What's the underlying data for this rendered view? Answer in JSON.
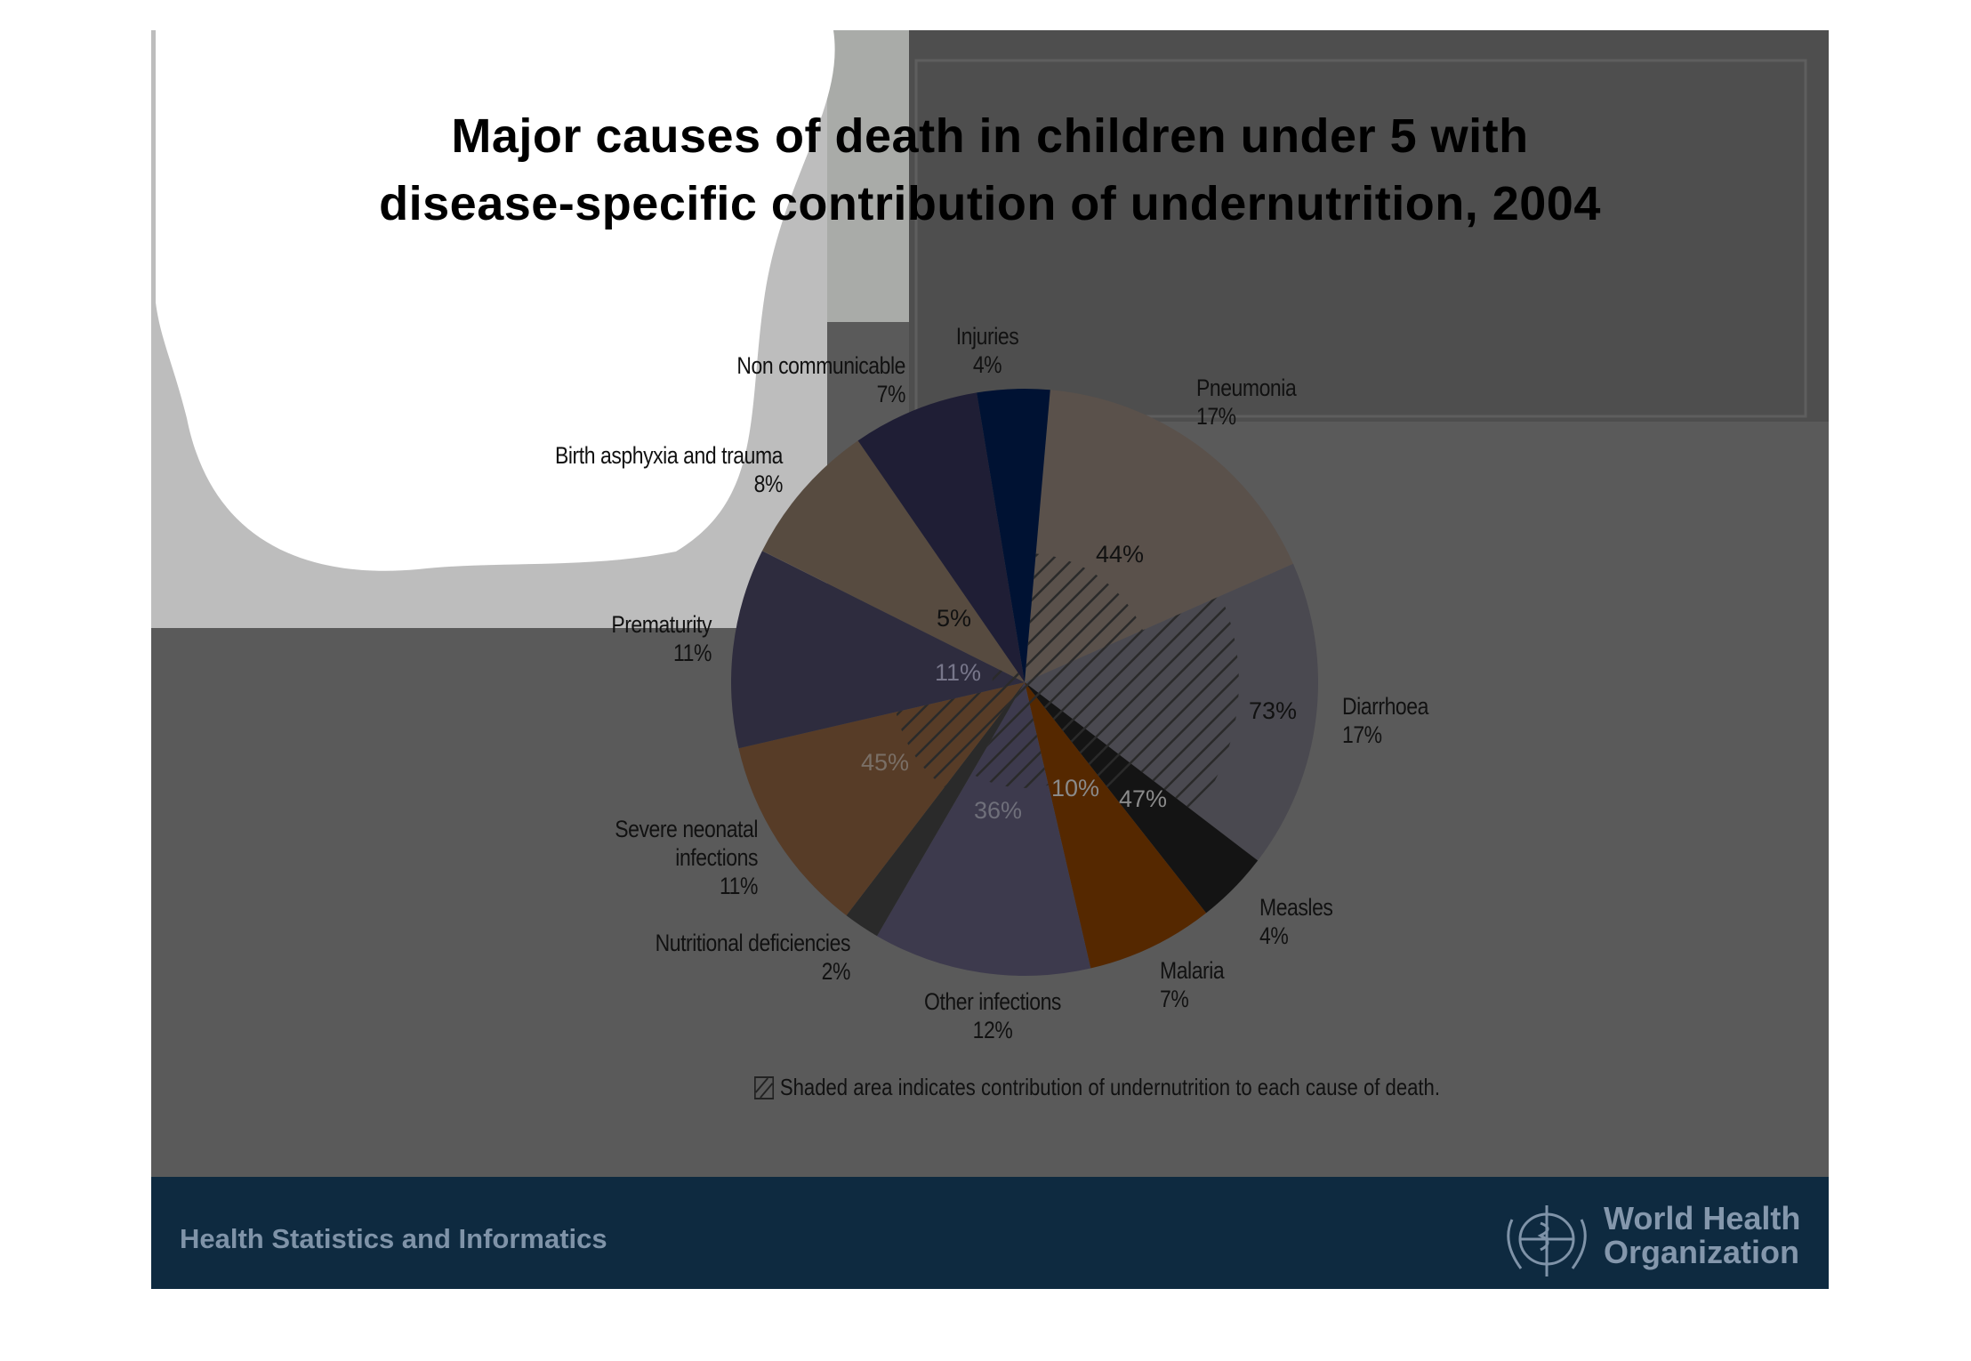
{
  "title_lines": [
    "Major causes of death in children under 5 with",
    "disease-specific contribution of undernutrition, 2004"
  ],
  "chart_data": {
    "type": "pie",
    "title": "Major causes of death in children under 5 with disease-specific contribution of undernutrition, 2004",
    "slices": [
      {
        "name": "Pneumonia",
        "value": 17,
        "value_label": "17%",
        "undernutrition_share": 44,
        "share_label": "44%",
        "color": "#5a514b"
      },
      {
        "name": "Diarrhoea",
        "value": 17,
        "value_label": "17%",
        "undernutrition_share": 73,
        "share_label": "73%",
        "color": "#4a4950"
      },
      {
        "name": "Measles",
        "value": 4,
        "value_label": "4%",
        "undernutrition_share": 47,
        "share_label": "47%",
        "color": "#141414"
      },
      {
        "name": "Malaria",
        "value": 7,
        "value_label": "7%",
        "undernutrition_share": 10,
        "share_label": "10%",
        "color": "#552800"
      },
      {
        "name": "Other infections",
        "value": 12,
        "value_label": "12%",
        "undernutrition_share": 36,
        "share_label": "36%",
        "color": "#3d3a4d"
      },
      {
        "name": "Nutritional deficiencies",
        "value": 2,
        "value_label": "2%",
        "color": "#2a2a2a"
      },
      {
        "name": "Severe neonatal infections",
        "value": 11,
        "value_label": "11%",
        "undernutrition_share": 45,
        "share_label": "45%",
        "color": "#573c27"
      },
      {
        "name": "Prematurity",
        "value": 11,
        "value_label": "11%",
        "undernutrition_share": 11,
        "share_label": "11%",
        "color": "#2e2c3e"
      },
      {
        "name": "Birth asphyxia and trauma",
        "value": 8,
        "value_label": "8%",
        "undernutrition_share": 5,
        "share_label": "5%",
        "color": "#574b40"
      },
      {
        "name": "Non communicable",
        "value": 7,
        "value_label": "7%",
        "color": "#1f1e35"
      },
      {
        "name": "Injuries",
        "value": 4,
        "value_label": "4%",
        "color": "#001233"
      }
    ],
    "legend": "Shaded area indicates contribution of undernutrition to each cause of death.",
    "legend_placement": "bottom"
  },
  "footer": {
    "left_text": "Health Statistics and Informatics",
    "org_lines": [
      "World Health",
      "Organization"
    ],
    "background": "#0e2a40"
  }
}
